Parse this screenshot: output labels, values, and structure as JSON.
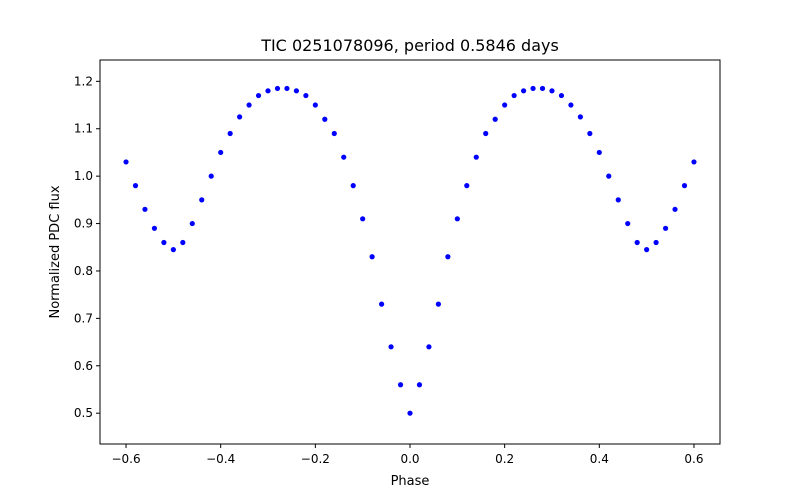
{
  "chart_data": {
    "type": "scatter",
    "title": "TIC 0251078096, period 0.5846 days",
    "xlabel": "Phase",
    "ylabel": "Normalized PDC flux",
    "xlim": [
      -0.655,
      0.655
    ],
    "ylim": [
      0.435,
      1.245
    ],
    "xticks": [
      -0.6,
      -0.4,
      -0.2,
      0.0,
      0.2,
      0.4,
      0.6
    ],
    "xtick_labels": [
      "−0.6",
      "−0.4",
      "−0.2",
      "0.0",
      "0.2",
      "0.4",
      "0.6"
    ],
    "yticks": [
      0.5,
      0.6,
      0.7,
      0.8,
      0.9,
      1.0,
      1.1,
      1.2
    ],
    "ytick_labels": [
      "0.5",
      "0.6",
      "0.7",
      "0.8",
      "0.9",
      "1.0",
      "1.1",
      "1.2"
    ],
    "grid": false,
    "marker_color": "#0000ff",
    "series": [
      {
        "x": [
          -0.6,
          -0.58,
          -0.56,
          -0.54,
          -0.52,
          -0.5,
          -0.48,
          -0.46,
          -0.44,
          -0.42,
          -0.4,
          -0.38,
          -0.36,
          -0.34,
          -0.32,
          -0.3,
          -0.28,
          -0.26,
          -0.24,
          -0.22,
          -0.2,
          -0.18,
          -0.16,
          -0.14,
          -0.12,
          -0.1,
          -0.08,
          -0.06,
          -0.04,
          -0.02,
          0.0,
          0.02,
          0.04,
          0.06,
          0.08,
          0.1,
          0.12,
          0.14,
          0.16,
          0.18,
          0.2,
          0.22,
          0.24,
          0.26,
          0.28,
          0.3,
          0.32,
          0.34,
          0.36,
          0.38,
          0.4,
          0.42,
          0.44,
          0.46,
          0.48,
          0.5,
          0.52,
          0.54,
          0.56,
          0.58,
          0.6
        ],
        "y": [
          1.03,
          0.98,
          0.93,
          0.89,
          0.86,
          0.845,
          0.86,
          0.9,
          0.95,
          1.0,
          1.05,
          1.09,
          1.125,
          1.15,
          1.17,
          1.18,
          1.185,
          1.185,
          1.18,
          1.17,
          1.15,
          1.12,
          1.09,
          1.04,
          0.98,
          0.91,
          0.83,
          0.73,
          0.64,
          0.56,
          0.5,
          0.56,
          0.64,
          0.73,
          0.83,
          0.91,
          0.98,
          1.04,
          1.09,
          1.12,
          1.15,
          1.17,
          1.18,
          1.185,
          1.185,
          1.18,
          1.17,
          1.15,
          1.125,
          1.09,
          1.05,
          1.0,
          0.95,
          0.9,
          0.86,
          0.845,
          0.86,
          0.89,
          0.93,
          0.98,
          1.03
        ]
      }
    ]
  }
}
